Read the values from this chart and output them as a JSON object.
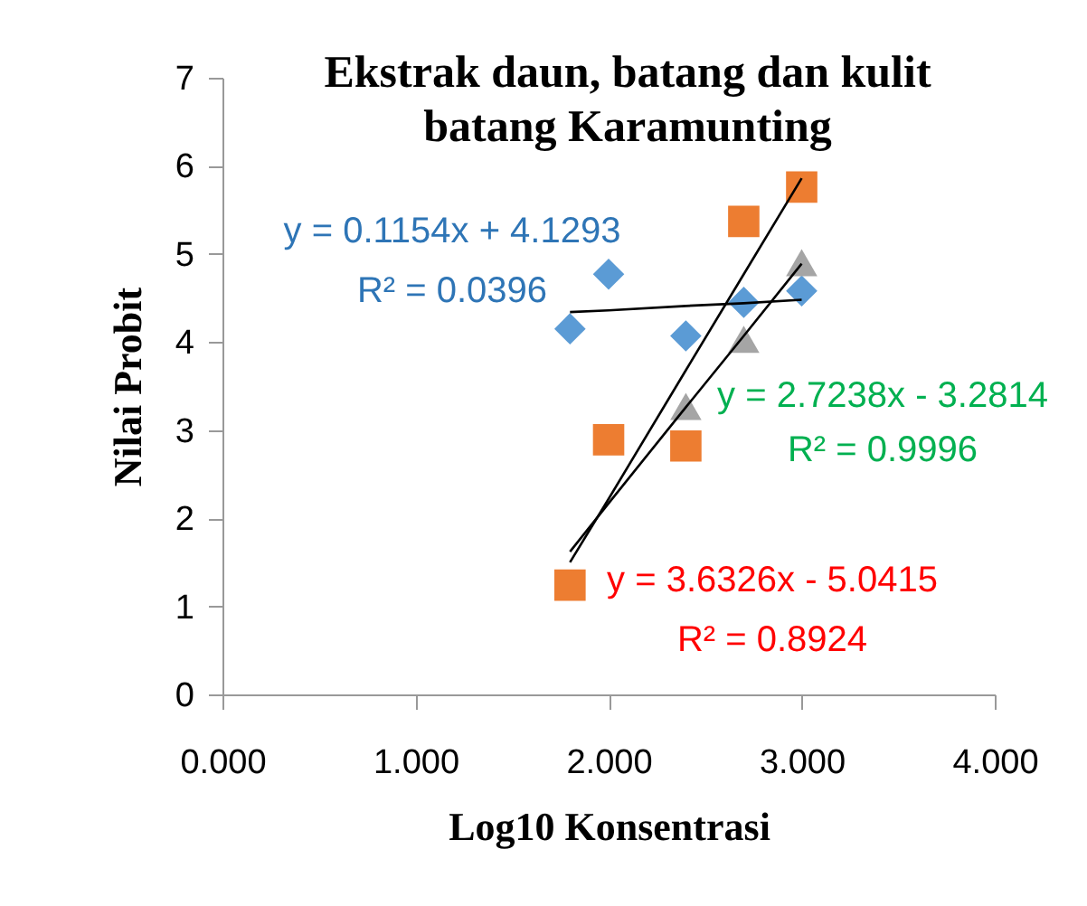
{
  "chart_data": {
    "type": "scatter",
    "title": "Ekstrak daun, batang dan kulit batang Karamunting",
    "xlabel": "Log10 Konsentrasi",
    "ylabel": "Nilai Probit",
    "x": [
      1.8,
      2.0,
      2.4,
      2.7,
      3.0
    ],
    "series": [
      {
        "color": "#5b9bd5",
        "marker": "diamond",
        "values": [
          4.15,
          4.77,
          4.07,
          4.45,
          4.58
        ]
      },
      {
        "color": "#ed7d31",
        "marker": "square",
        "values": [
          1.24,
          2.89,
          2.82,
          5.37,
          5.76
        ]
      },
      {
        "color": "#a5a5a5",
        "marker": "triangle",
        "values": [
          null,
          null,
          3.27,
          4.03,
          4.9
        ]
      },
      {
        "type": "line",
        "color": "#000000",
        "values": [
          4.34,
          4.36,
          4.41,
          4.44,
          4.48
        ]
      },
      {
        "type": "line",
        "color": "#000000",
        "values": [
          1.5,
          2.22,
          3.68,
          4.77,
          5.86
        ]
      },
      {
        "type": "line",
        "color": "#000000",
        "values": [
          1.62,
          2.17,
          3.26,
          4.07,
          4.89
        ]
      }
    ],
    "annotations": [
      "y = 0.1154x + 4.1293",
      "R² = 0.0396",
      "y = 2.7238x - 3.2814",
      "R² = 0.9996",
      "y = 3.6326x - 5.0415",
      "R² = 0.8924"
    ],
    "xlim": [
      0,
      4
    ],
    "xticks": [
      {
        "value": 0,
        "label": "0.000"
      },
      {
        "value": 1,
        "label": "1.000"
      },
      {
        "value": 2,
        "label": "2.000"
      },
      {
        "value": 3,
        "label": "3.000"
      },
      {
        "value": 4,
        "label": "4.000"
      }
    ],
    "ylim": [
      0,
      7
    ],
    "yticks": [
      0,
      1,
      2,
      3,
      4,
      5,
      6,
      7
    ],
    "grid": false
  }
}
